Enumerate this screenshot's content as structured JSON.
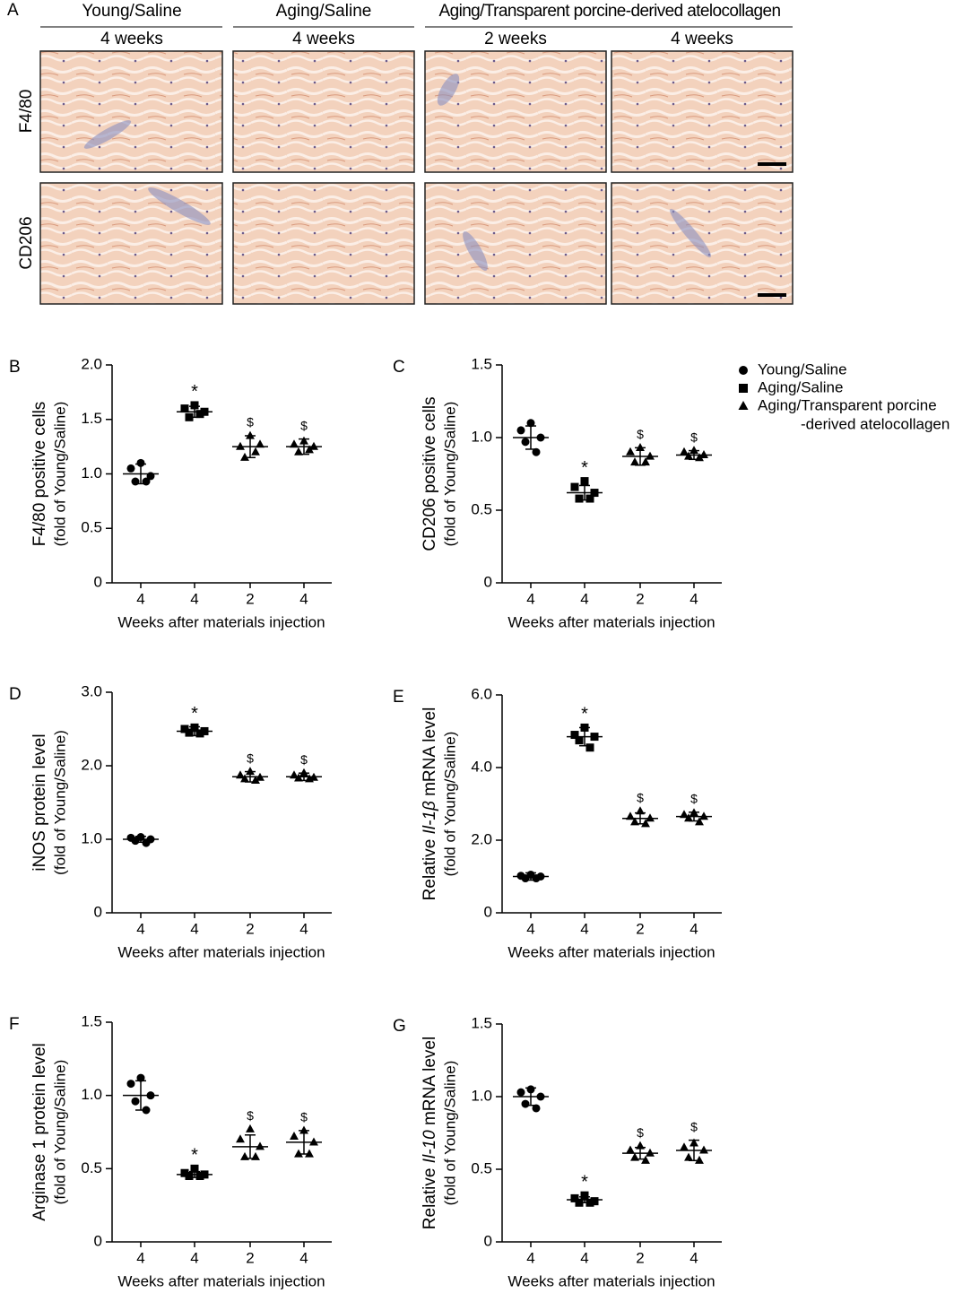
{
  "panel_a": {
    "label": "A",
    "groups": [
      "Young/Saline",
      "Aging/Saline",
      "Aging/Transparent porcine-derived atelocollagen"
    ],
    "times": [
      "4 weeks",
      "4 weeks",
      "2 weeks",
      "4 weeks"
    ],
    "rows": [
      "F4/80",
      "CD206"
    ]
  },
  "legend": [
    {
      "lines": [
        "Young/Saline"
      ],
      "marker": "circle"
    },
    {
      "lines": [
        "Aging/Saline"
      ],
      "marker": "square"
    },
    {
      "lines": [
        "Aging/Transparent porcine",
        "-derived atelocollagen"
      ],
      "marker": "triangle"
    }
  ],
  "chart_data": [
    {
      "type": "dot",
      "label": "B",
      "ylabel": [
        {
          "text": "F4/80 positive cells",
          "italic": false
        }
      ],
      "ylabel2": "(fold of Young/Saline)",
      "xlabel": "Weeks after materials injection",
      "categories": [
        "4",
        "4",
        "2",
        "4"
      ],
      "markers": [
        "circle",
        "square",
        "triangle",
        "triangle"
      ],
      "annotations": [
        null,
        "*",
        "$",
        "$"
      ],
      "ylim": [
        0,
        2
      ],
      "yticks": [
        0,
        0.5,
        {
          "value": 1,
          "label": "1.0"
        },
        1.5,
        {
          "value": 2,
          "label": "2.0"
        }
      ],
      "means": [
        1.0,
        1.57,
        1.25,
        1.25
      ],
      "sd": [
        0.09,
        0.05,
        0.1,
        0.07
      ],
      "points": [
        [
          1.1,
          1.05,
          0.98,
          0.93,
          0.93
        ],
        [
          1.63,
          1.6,
          1.57,
          1.52,
          1.55
        ],
        [
          1.35,
          1.25,
          1.27,
          1.15,
          1.2
        ],
        [
          1.3,
          1.27,
          1.25,
          1.2,
          1.22
        ]
      ],
      "color": "#000000"
    },
    {
      "type": "dot",
      "label": "C",
      "ylabel": [
        {
          "text": "CD206 positive cells",
          "italic": false
        }
      ],
      "ylabel2": "(fold of Young/Saline)",
      "xlabel": "Weeks after materials injection",
      "categories": [
        "4",
        "4",
        "2",
        "4"
      ],
      "markers": [
        "circle",
        "square",
        "triangle",
        "triangle"
      ],
      "annotations": [
        null,
        "*",
        "$",
        "$"
      ],
      "ylim": [
        0,
        1.5
      ],
      "yticks": [
        0,
        0.5,
        {
          "value": 1,
          "label": "1.0"
        },
        1.5
      ],
      "means": [
        1.0,
        0.62,
        0.87,
        0.88
      ],
      "sd": [
        0.08,
        0.05,
        0.06,
        0.03
      ],
      "points": [
        [
          1.1,
          1.05,
          1.0,
          0.97,
          0.9
        ],
        [
          0.7,
          0.66,
          0.62,
          0.58,
          0.58
        ],
        [
          0.93,
          0.9,
          0.87,
          0.83,
          0.83
        ],
        [
          0.91,
          0.9,
          0.88,
          0.87,
          0.86
        ]
      ],
      "color": "#000000"
    },
    {
      "type": "dot",
      "label": "D",
      "ylabel": [
        {
          "text": "iNOS protein level",
          "italic": false
        }
      ],
      "ylabel2": "(fold of Young/Saline)",
      "xlabel": "Weeks after materials injection",
      "categories": [
        "4",
        "4",
        "2",
        "4"
      ],
      "markers": [
        "circle",
        "square",
        "triangle",
        "triangle"
      ],
      "annotations": [
        null,
        "*",
        "$",
        "$"
      ],
      "ylim": [
        0,
        3
      ],
      "yticks": [
        0,
        {
          "value": 1,
          "label": "1.0"
        },
        {
          "value": 2,
          "label": "2.0"
        },
        {
          "value": 3,
          "label": "3.0"
        }
      ],
      "means": [
        1.0,
        2.47,
        1.85,
        1.85
      ],
      "sd": [
        0.04,
        0.06,
        0.07,
        0.05
      ],
      "points": [
        [
          1.03,
          1.02,
          1.0,
          0.98,
          0.95
        ],
        [
          2.52,
          2.5,
          2.47,
          2.45,
          2.44
        ],
        [
          1.92,
          1.87,
          1.84,
          1.82,
          1.8
        ],
        [
          1.9,
          1.87,
          1.84,
          1.83,
          1.82
        ]
      ],
      "color": "#000000"
    },
    {
      "type": "dot",
      "label": "E",
      "ylabel": [
        {
          "text": "Relative ",
          "italic": false
        },
        {
          "text": "Il-1β",
          "italic": true
        },
        {
          "text": " mRNA level",
          "italic": false
        }
      ],
      "ylabel2": "(fold of Young/Saline)",
      "xlabel": "Weeks after materials injection",
      "categories": [
        "4",
        "4",
        "2",
        "4"
      ],
      "markers": [
        "circle",
        "square",
        "triangle",
        "triangle"
      ],
      "annotations": [
        null,
        "*",
        "$",
        "$"
      ],
      "ylim": [
        0,
        6
      ],
      "yticks": [
        0,
        {
          "value": 2,
          "label": "2.0"
        },
        {
          "value": 4,
          "label": "4.0"
        },
        {
          "value": 6,
          "label": "6.0"
        }
      ],
      "means": [
        1.0,
        4.85,
        2.6,
        2.65
      ],
      "sd": [
        0.1,
        0.25,
        0.15,
        0.12
      ],
      "points": [
        [
          1.05,
          1.02,
          1.0,
          0.95,
          0.95
        ],
        [
          5.1,
          4.9,
          4.85,
          4.75,
          4.55
        ],
        [
          2.8,
          2.65,
          2.6,
          2.5,
          2.45
        ],
        [
          2.75,
          2.7,
          2.65,
          2.6,
          2.5
        ]
      ],
      "color": "#000000"
    },
    {
      "type": "dot",
      "label": "F",
      "ylabel": [
        {
          "text": "Arginase 1 protein level",
          "italic": false
        }
      ],
      "ylabel2": "(fold of Young/Saline)",
      "xlabel": "Weeks after materials injection",
      "categories": [
        "4",
        "4",
        "2",
        "4"
      ],
      "markers": [
        "circle",
        "square",
        "triangle",
        "triangle"
      ],
      "annotations": [
        null,
        "*",
        "$",
        "$"
      ],
      "ylim": [
        0,
        1.5
      ],
      "yticks": [
        0,
        0.5,
        {
          "value": 1,
          "label": "1.0"
        },
        1.5
      ],
      "means": [
        1.0,
        0.46,
        0.65,
        0.68
      ],
      "sd": [
        0.1,
        0.02,
        0.08,
        0.08
      ],
      "points": [
        [
          1.12,
          1.08,
          1.0,
          0.96,
          0.9
        ],
        [
          0.5,
          0.47,
          0.46,
          0.45,
          0.45
        ],
        [
          0.77,
          0.7,
          0.65,
          0.58,
          0.58
        ],
        [
          0.76,
          0.72,
          0.68,
          0.6,
          0.6
        ]
      ],
      "color": "#000000"
    },
    {
      "type": "dot",
      "label": "G",
      "ylabel": [
        {
          "text": "Relative ",
          "italic": false
        },
        {
          "text": "Il-10",
          "italic": true
        },
        {
          "text": " mRNA level",
          "italic": false
        }
      ],
      "ylabel2": "(fold of Young/Saline)",
      "xlabel": "Weeks after materials injection",
      "categories": [
        "4",
        "4",
        "2",
        "4"
      ],
      "markers": [
        "circle",
        "square",
        "triangle",
        "triangle"
      ],
      "annotations": [
        null,
        "*",
        "$",
        "$"
      ],
      "ylim": [
        0,
        1.5
      ],
      "yticks": [
        0,
        0.5,
        {
          "value": 1,
          "label": "1.0"
        },
        1.5
      ],
      "means": [
        1.0,
        0.29,
        0.61,
        0.63
      ],
      "sd": [
        0.06,
        0.02,
        0.04,
        0.07
      ],
      "points": [
        [
          1.05,
          1.03,
          1.0,
          0.95,
          0.92
        ],
        [
          0.32,
          0.3,
          0.28,
          0.27,
          0.27
        ],
        [
          0.66,
          0.63,
          0.61,
          0.58,
          0.56
        ],
        [
          0.68,
          0.65,
          0.63,
          0.58,
          0.56
        ]
      ],
      "color": "#000000"
    }
  ]
}
